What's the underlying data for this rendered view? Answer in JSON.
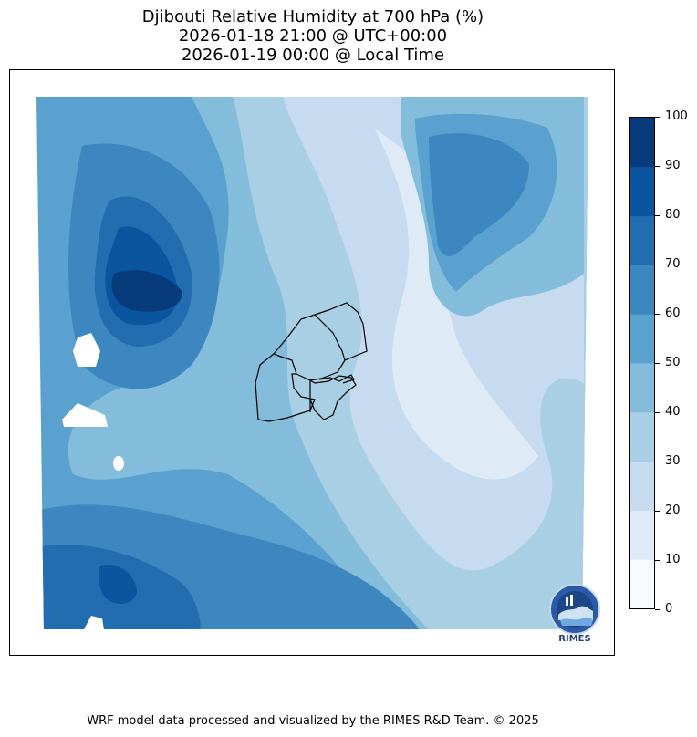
{
  "title": {
    "line1": "Djibouti Relative Humidity at 700 hPa (%)",
    "line2": "2026-01-18 21:00 @ UTC+00:00",
    "line3": "2026-01-19 00:00 @ Local Time"
  },
  "colorbar": {
    "ticks": [
      "0",
      "10",
      "20",
      "30",
      "40",
      "50",
      "60",
      "70",
      "80",
      "90",
      "100"
    ],
    "colors": [
      "#f7fbff",
      "#deebf7",
      "#c6dbef",
      "#a9cfe5",
      "#84bcdb",
      "#5aa1cf",
      "#3c87c0",
      "#216daf",
      "#0b559f",
      "#083b7c"
    ]
  },
  "logo": {
    "text": "RIMES",
    "icon": "rimes-logo-icon"
  },
  "credit": "WRF model data processed and visualized by the RIMES R&D Team. © 2025"
}
